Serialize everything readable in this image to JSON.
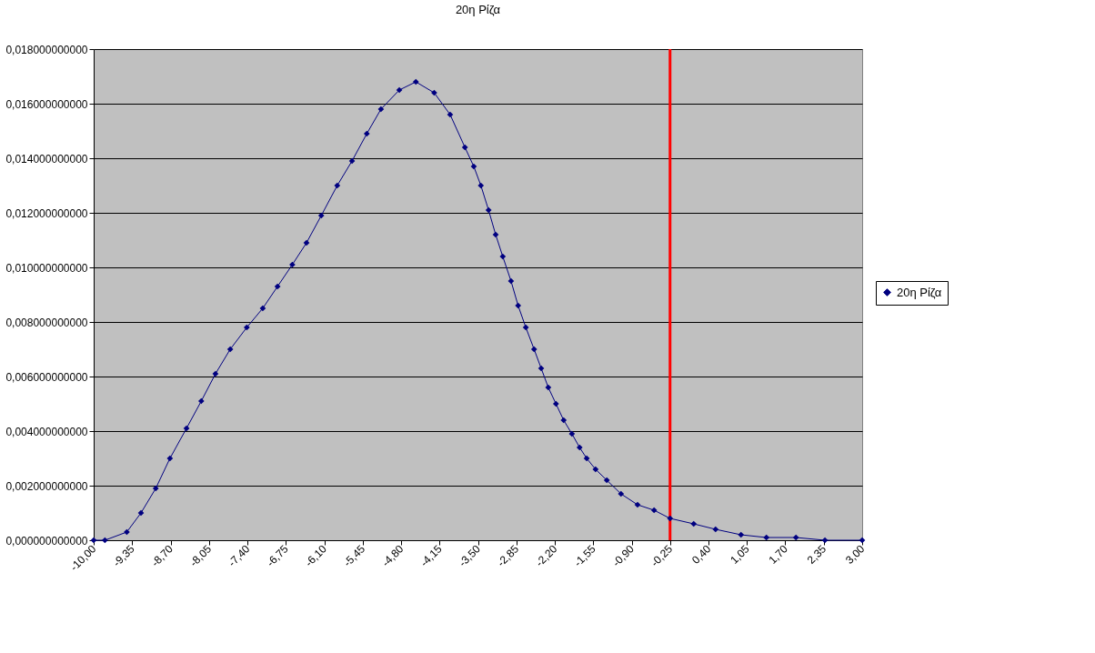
{
  "chart_data": {
    "type": "line",
    "title": "20η Ρίζα",
    "marker": "diamond",
    "line_style": "solid",
    "grid": "y",
    "legend": "right",
    "xlim": [
      -10,
      3
    ],
    "xticks": [
      {
        "value": -10,
        "label": "-10,00"
      },
      {
        "value": -9.35,
        "label": "-9,35"
      },
      {
        "value": -8.7,
        "label": "-8,70"
      },
      {
        "value": -8.05,
        "label": "-8,05"
      },
      {
        "value": -7.4,
        "label": "-7,40"
      },
      {
        "value": -6.75,
        "label": "-6,75"
      },
      {
        "value": -6.1,
        "label": "-6,10"
      },
      {
        "value": -5.45,
        "label": "-5,45"
      },
      {
        "value": -4.8,
        "label": "-4,80"
      },
      {
        "value": -4.15,
        "label": "-4,15"
      },
      {
        "value": -3.5,
        "label": "-3,50"
      },
      {
        "value": -2.85,
        "label": "-2,85"
      },
      {
        "value": -2.2,
        "label": "-2,20"
      },
      {
        "value": -1.55,
        "label": "-1,55"
      },
      {
        "value": -0.9,
        "label": "-0,90"
      },
      {
        "value": -0.25,
        "label": "-0,25"
      },
      {
        "value": 0.4,
        "label": "0,40"
      },
      {
        "value": 1.05,
        "label": "1,05"
      },
      {
        "value": 1.7,
        "label": "1,70"
      },
      {
        "value": 2.35,
        "label": "2,35"
      },
      {
        "value": 3,
        "label": "3,00"
      }
    ],
    "ylim": [
      0,
      0.018
    ],
    "yticks": [
      {
        "value": 0,
        "label": "0,000000000000"
      },
      {
        "value": 0.002,
        "label": "0,002000000000"
      },
      {
        "value": 0.004,
        "label": "0,004000000000"
      },
      {
        "value": 0.006,
        "label": "0,006000000000"
      },
      {
        "value": 0.008,
        "label": "0,008000000000"
      },
      {
        "value": 0.01,
        "label": "0,010000000000"
      },
      {
        "value": 0.012,
        "label": "0,012000000000"
      },
      {
        "value": 0.014,
        "label": "0,014000000000"
      },
      {
        "value": 0.016,
        "label": "0,016000000000"
      },
      {
        "value": 0.018,
        "label": "0,018000000000"
      }
    ],
    "ref_lines": [
      {
        "axis": "x",
        "value": -0.25,
        "color": "#ff0000",
        "line_style": "solid"
      }
    ],
    "series": [
      {
        "name": "20η Ρίζα",
        "color": "#000080",
        "x": [
          -10,
          -9.81,
          -9.44,
          -9.2,
          -8.95,
          -8.71,
          -8.43,
          -8.18,
          -7.94,
          -7.69,
          -7.41,
          -7.14,
          -6.89,
          -6.64,
          -6.4,
          -6.15,
          -5.88,
          -5.63,
          -5.38,
          -5.14,
          -4.83,
          -4.55,
          -4.24,
          -3.97,
          -3.72,
          -3.57,
          -3.45,
          -3.32,
          -3.2,
          -3.08,
          -2.94,
          -2.82,
          -2.69,
          -2.55,
          -2.43,
          -2.31,
          -2.18,
          -2.05,
          -1.91,
          -1.78,
          -1.66,
          -1.51,
          -1.32,
          -1.08,
          -0.8,
          -0.52,
          -0.25,
          0.15,
          0.52,
          0.95,
          1.38,
          1.88,
          2.37,
          3
        ],
        "values": [
          0,
          0,
          0.0003,
          0.001,
          0.0019,
          0.003,
          0.0041,
          0.0051,
          0.0061,
          0.007,
          0.0078,
          0.0085,
          0.0093,
          0.0101,
          0.0109,
          0.0119,
          0.013,
          0.0139,
          0.0149,
          0.0158,
          0.0165,
          0.0168,
          0.0164,
          0.0156,
          0.0144,
          0.0137,
          0.013,
          0.0121,
          0.0112,
          0.0104,
          0.0095,
          0.0086,
          0.0078,
          0.007,
          0.0063,
          0.0056,
          0.005,
          0.0044,
          0.0039,
          0.0034,
          0.003,
          0.0026,
          0.0022,
          0.0017,
          0.0013,
          0.0011,
          0.0008,
          0.0006,
          0.0004,
          0.0002,
          0.0001,
          0.0001,
          0,
          0
        ]
      }
    ]
  }
}
